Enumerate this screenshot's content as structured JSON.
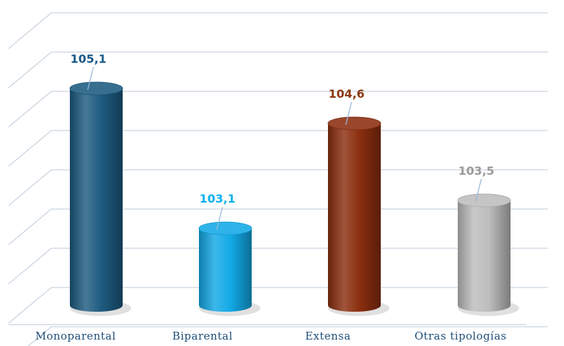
{
  "chart_data": {
    "type": "bar",
    "style": "3d-cylinder",
    "categories": [
      "Monoparental",
      "Biparental",
      "Extensa",
      "Otras tipologías"
    ],
    "values": [
      105.1,
      103.1,
      104.6,
      103.5
    ],
    "value_labels": [
      "105,1",
      "103,1",
      "104,6",
      "103,5"
    ],
    "colors": [
      "#1d5b80",
      "#12a9e6",
      "#8b2e0f",
      "#bdbdbd"
    ],
    "label_colors": [
      "#1a5a8a",
      "#10b0f0",
      "#8b3a12",
      "#9a9a9a"
    ],
    "title": "",
    "xlabel": "",
    "ylabel": "",
    "ylim": [
      102,
      105.6
    ],
    "grid": true,
    "legend": "none"
  }
}
